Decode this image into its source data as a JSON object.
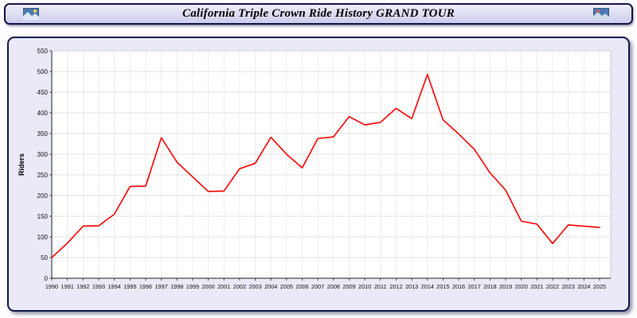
{
  "header": {
    "title": "California Triple Crown Ride History GRAND TOUR",
    "left_icon": "photo-thumbnail-icon",
    "right_icon": "photo-thumbnail-icon"
  },
  "colors": {
    "line": "#ff0000",
    "panel_background": "#e9e9f7",
    "border_navy": "#14144e",
    "plot_background": "#ffffff",
    "gridline": "#dcdcdc"
  },
  "chart_data": {
    "type": "line",
    "title": "California Triple Crown Ride History GRAND TOUR",
    "xlabel": "",
    "ylabel": "Riders",
    "ylim": [
      0,
      550
    ],
    "ytick_step": 50,
    "grid": true,
    "legend": "none",
    "line_color": "#ff0000",
    "x": [
      1990,
      1991,
      1992,
      1993,
      1994,
      1995,
      1996,
      1997,
      1998,
      1999,
      2000,
      2001,
      2002,
      2003,
      2004,
      2005,
      2006,
      2007,
      2008,
      2009,
      2010,
      2011,
      2012,
      2013,
      2014,
      2015,
      2016,
      2017,
      2018,
      2019,
      2020,
      2021,
      2022,
      2023,
      2024,
      2025
    ],
    "values": [
      50,
      85,
      126,
      127,
      155,
      222,
      223,
      340,
      281,
      245,
      210,
      211,
      265,
      278,
      341,
      300,
      267,
      338,
      342,
      391,
      371,
      377,
      411,
      386,
      493,
      383,
      349,
      312,
      255,
      213,
      138,
      131,
      84,
      129,
      126,
      123
    ]
  }
}
